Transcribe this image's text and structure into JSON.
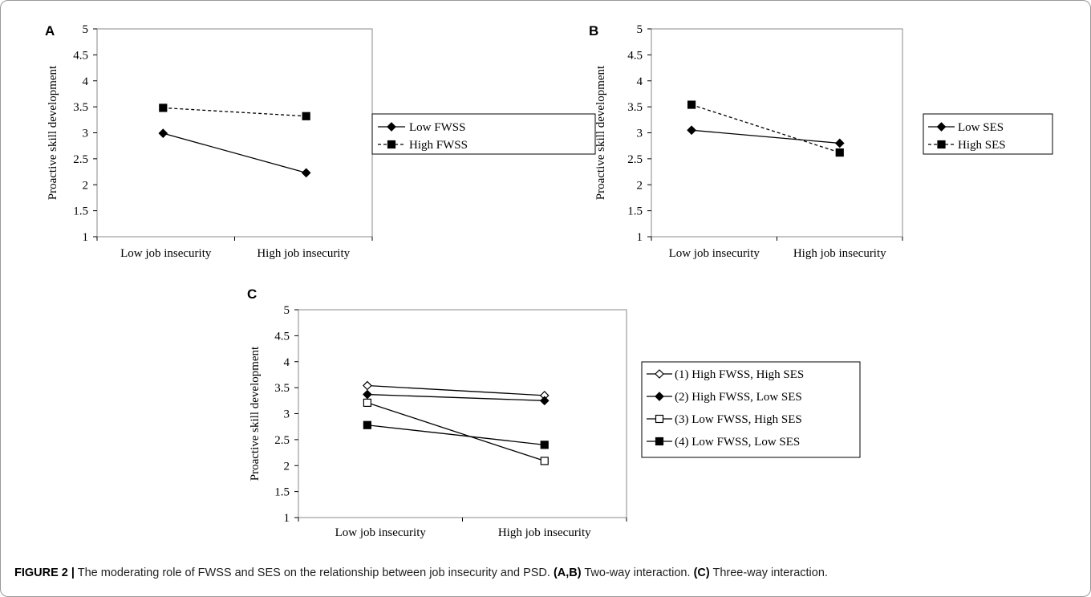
{
  "caption": {
    "label": "FIGURE 2 |",
    "text_1": " The moderating role of FWSS and SES on the relationship between job insecurity and PSD. ",
    "bold_ab": "(A,B)",
    "text_2": " Two-way interaction. ",
    "bold_c": "(C)",
    "text_3": " Three-way interaction."
  },
  "chart_data": [
    {
      "panel": "A",
      "type": "line",
      "ylabel": "Proactive skill development",
      "categories": [
        "Low job insecurity",
        "High job insecurity"
      ],
      "ylim": [
        1,
        5
      ],
      "yticks": [
        "1",
        "1.5",
        "2",
        "2.5",
        "3",
        "3.5",
        "4",
        "4.5",
        "5"
      ],
      "grid": false,
      "legend": "right",
      "series": [
        {
          "name": "Low FWSS",
          "values": [
            2.99,
            2.23
          ],
          "marker": "diamond-filled",
          "dash": "solid"
        },
        {
          "name": "High FWSS",
          "values": [
            3.48,
            3.32
          ],
          "marker": "square-filled",
          "dash": "dashed"
        }
      ]
    },
    {
      "panel": "B",
      "type": "line",
      "ylabel": "Proactive skill development",
      "categories": [
        "Low job insecurity",
        "High job insecurity"
      ],
      "ylim": [
        1,
        5
      ],
      "yticks": [
        "1",
        "1.5",
        "2",
        "2.5",
        "3",
        "3.5",
        "4",
        "4.5",
        "5"
      ],
      "grid": false,
      "legend": "right",
      "series": [
        {
          "name": "Low SES",
          "values": [
            3.05,
            2.8
          ],
          "marker": "diamond-filled",
          "dash": "solid"
        },
        {
          "name": "High SES",
          "values": [
            3.54,
            2.62
          ],
          "marker": "square-filled",
          "dash": "dashed"
        }
      ]
    },
    {
      "panel": "C",
      "type": "line",
      "ylabel": "Proactive skill development",
      "categories": [
        "Low job insecurity",
        "High job insecurity"
      ],
      "ylim": [
        1,
        5
      ],
      "yticks": [
        "1",
        "1.5",
        "2",
        "2.5",
        "3",
        "3.5",
        "4",
        "4.5",
        "5"
      ],
      "grid": false,
      "legend": "right",
      "series": [
        {
          "name": "(1) High FWSS, High SES",
          "values": [
            3.54,
            3.35
          ],
          "marker": "diamond-open",
          "dash": "solid"
        },
        {
          "name": "(2) High FWSS, Low SES",
          "values": [
            3.37,
            3.25
          ],
          "marker": "diamond-filled",
          "dash": "solid"
        },
        {
          "name": "(3) Low FWSS, High SES",
          "values": [
            3.21,
            2.09
          ],
          "marker": "square-open",
          "dash": "solid"
        },
        {
          "name": "(4) Low FWSS, Low SES",
          "values": [
            2.78,
            2.4
          ],
          "marker": "square-filled",
          "dash": "solid"
        }
      ]
    }
  ]
}
